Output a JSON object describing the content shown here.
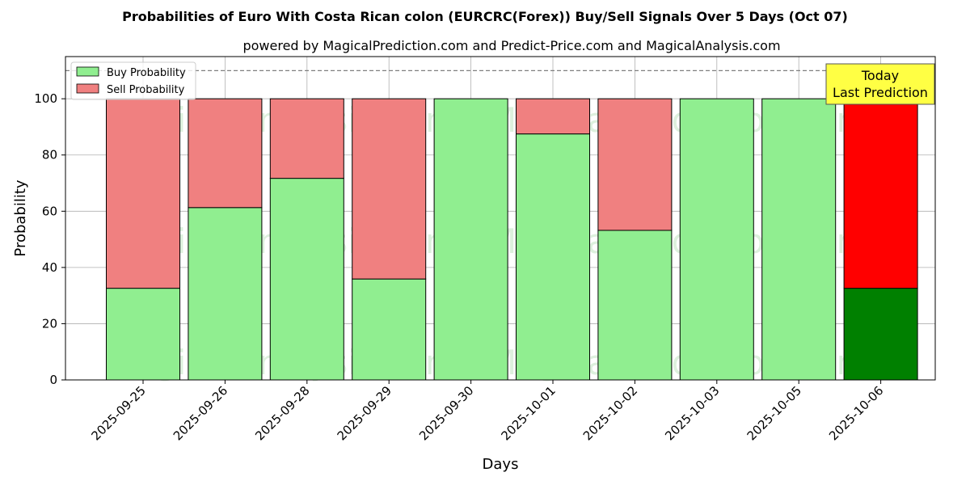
{
  "chart_data": {
    "type": "bar",
    "stacked": true,
    "title": "Probabilities of Euro With Costa Rican colon (EURCRC(Forex)) Buy/Sell Signals Over 5 Days (Oct 07)",
    "subtitle": "powered by MagicalPrediction.com and Predict-Price.com and MagicalAnalysis.com",
    "xlabel": "Days",
    "ylabel": "Probability",
    "ylim": [
      0,
      115
    ],
    "yticks": [
      0,
      20,
      40,
      60,
      80,
      100
    ],
    "categories": [
      "2025-09-25",
      "2025-09-26",
      "2025-09-28",
      "2025-09-29",
      "2025-09-30",
      "2025-10-01",
      "2025-10-02",
      "2025-10-03",
      "2025-10-05",
      "2025-10-06"
    ],
    "series": [
      {
        "name": "Buy Probability",
        "color": "#90ee90",
        "values": [
          32.6,
          61.3,
          71.7,
          35.9,
          100,
          87.5,
          53.2,
          100,
          100,
          32.6
        ]
      },
      {
        "name": "Sell Probability",
        "color": "#f08080",
        "values": [
          67.4,
          38.7,
          28.3,
          64.1,
          0,
          12.5,
          46.8,
          0,
          0,
          67.4
        ]
      }
    ],
    "highlight": {
      "index": 9,
      "buy_color": "#008000",
      "sell_color": "#ff0000"
    },
    "reference_line": {
      "y": 110,
      "style": "dashed",
      "color": "#808080"
    },
    "annotation": {
      "lines": [
        "Today",
        "Last Prediction"
      ],
      "background": "#ffff44"
    },
    "legend_position": "top-left",
    "grid": true,
    "watermarks": [
      "MagicalAnalysis.com",
      "MagicalPrediction.com",
      "MagicalAnalysis.com",
      "MagicalPrediction.com",
      "MagicalAnalysis.com",
      "MagicalPrediction.com"
    ]
  }
}
